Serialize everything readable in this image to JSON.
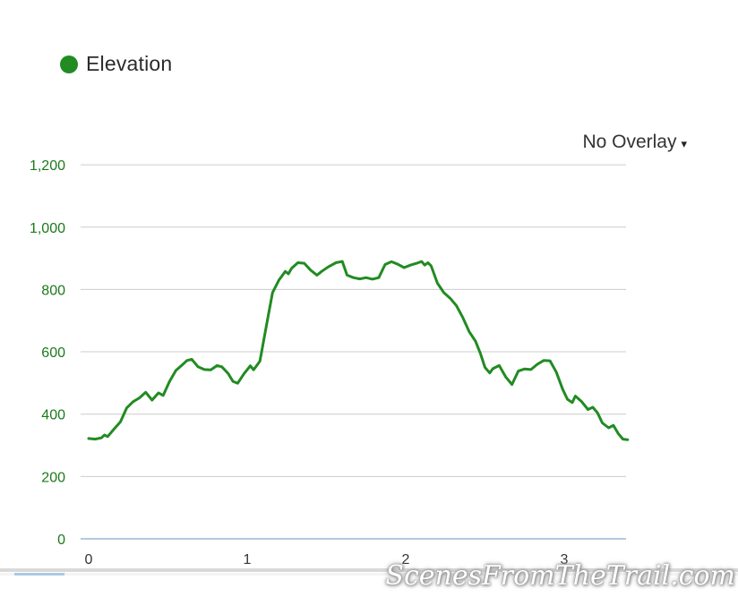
{
  "legend": {
    "label": "Elevation"
  },
  "overlay_dropdown": {
    "label": "No Overlay",
    "arrow": "▾"
  },
  "watermark": "ScenesFromTheTrail.com",
  "theme": {
    "line_color": "#228B22",
    "legend_dot_color": "#228B22",
    "y_label_color": "#1a7a1a",
    "x_label_color": "#333333",
    "grid_color": "#cccccc",
    "zero_line_color": "#b7c7e0",
    "divider_color": "#d9d9d9",
    "scrollbar_track_color": "#f4f4f4",
    "scrollbar_thumb_color": "#aac9e3"
  },
  "chart_data": {
    "type": "line",
    "title": "",
    "legend_position": "top-left",
    "grid": true,
    "xlabel": "",
    "ylabel": "",
    "xlim": [
      0,
      3.4
    ],
    "ylim": [
      0,
      1200
    ],
    "x_ticks": [
      0,
      1,
      2,
      3
    ],
    "x_tick_labels": [
      "0",
      "1",
      "2",
      "3"
    ],
    "y_ticks": [
      0,
      200,
      400,
      600,
      800,
      1000,
      1200
    ],
    "y_tick_labels": [
      "0",
      "200",
      "400",
      "600",
      "800",
      "1,000",
      "1,200"
    ],
    "x": [
      0.0,
      0.04,
      0.08,
      0.1,
      0.12,
      0.16,
      0.2,
      0.24,
      0.28,
      0.32,
      0.36,
      0.4,
      0.44,
      0.47,
      0.51,
      0.55,
      0.59,
      0.62,
      0.65,
      0.69,
      0.73,
      0.77,
      0.81,
      0.84,
      0.88,
      0.91,
      0.94,
      0.98,
      1.02,
      1.04,
      1.08,
      1.12,
      1.16,
      1.2,
      1.24,
      1.26,
      1.28,
      1.32,
      1.36,
      1.4,
      1.44,
      1.47,
      1.51,
      1.56,
      1.6,
      1.63,
      1.67,
      1.71,
      1.75,
      1.79,
      1.83,
      1.87,
      1.91,
      1.95,
      1.99,
      2.03,
      2.07,
      2.1,
      2.12,
      2.14,
      2.16,
      2.2,
      2.24,
      2.28,
      2.32,
      2.36,
      2.4,
      2.44,
      2.47,
      2.5,
      2.53,
      2.55,
      2.59,
      2.63,
      2.67,
      2.71,
      2.75,
      2.79,
      2.83,
      2.87,
      2.91,
      2.95,
      2.99,
      3.02,
      3.05,
      3.07,
      3.11,
      3.15,
      3.18,
      3.21,
      3.24,
      3.28,
      3.31,
      3.34,
      3.37,
      3.4
    ],
    "series": [
      {
        "name": "Elevation",
        "values": [
          322,
          320,
          324,
          333,
          328,
          352,
          375,
          420,
          440,
          452,
          470,
          445,
          468,
          460,
          505,
          540,
          558,
          572,
          576,
          552,
          543,
          542,
          556,
          552,
          530,
          505,
          499,
          530,
          555,
          542,
          570,
          680,
          790,
          830,
          858,
          850,
          868,
          886,
          884,
          862,
          846,
          858,
          872,
          886,
          890,
          846,
          838,
          834,
          838,
          833,
          838,
          880,
          889,
          881,
          870,
          878,
          884,
          890,
          878,
          886,
          876,
          820,
          790,
          772,
          748,
          710,
          665,
          634,
          596,
          550,
          532,
          546,
          556,
          520,
          495,
          538,
          545,
          543,
          560,
          572,
          571,
          535,
          480,
          448,
          437,
          458,
          440,
          415,
          422,
          404,
          372,
          356,
          364,
          338,
          320,
          318
        ]
      }
    ]
  }
}
